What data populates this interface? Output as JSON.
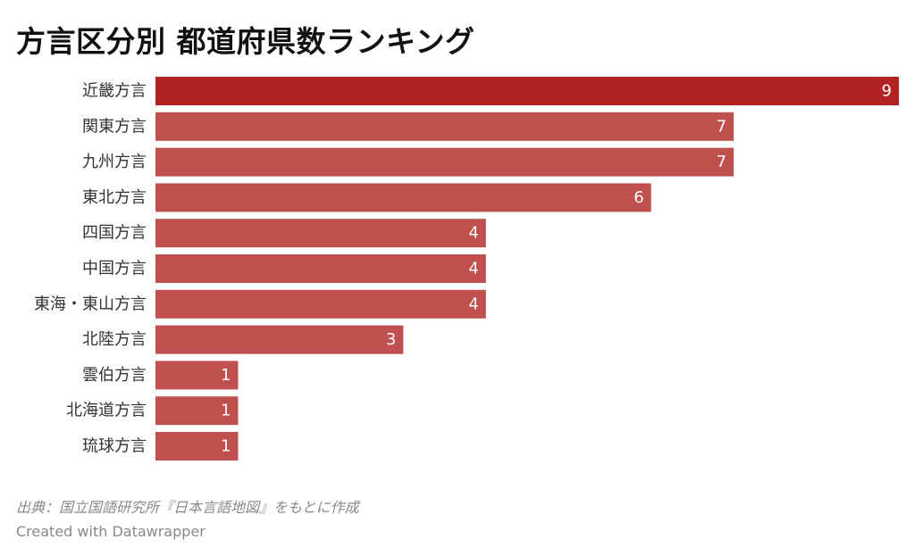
{
  "chart_data": {
    "type": "bar",
    "orientation": "horizontal",
    "title": "方言区分別 都道府県数ランキング",
    "categories": [
      "近畿方言",
      "関東方言",
      "九州方言",
      "東北方言",
      "四国方言",
      "中国方言",
      "東海・東山方言",
      "北陸方言",
      "雲伯方言",
      "北海道方言",
      "琉球方言"
    ],
    "values": [
      9,
      7,
      7,
      6,
      4,
      4,
      4,
      3,
      1,
      1,
      1
    ],
    "xlim": [
      0,
      9
    ],
    "grid": false,
    "xlabel": "",
    "ylabel": "",
    "highlight_color": "#b22222",
    "bar_color": "#c0504d",
    "value_label_color": "#ffffff"
  },
  "source": "出典：国立国語研究所『日本言語地図』をもとに作成",
  "credit": "Created with Datawrapper"
}
